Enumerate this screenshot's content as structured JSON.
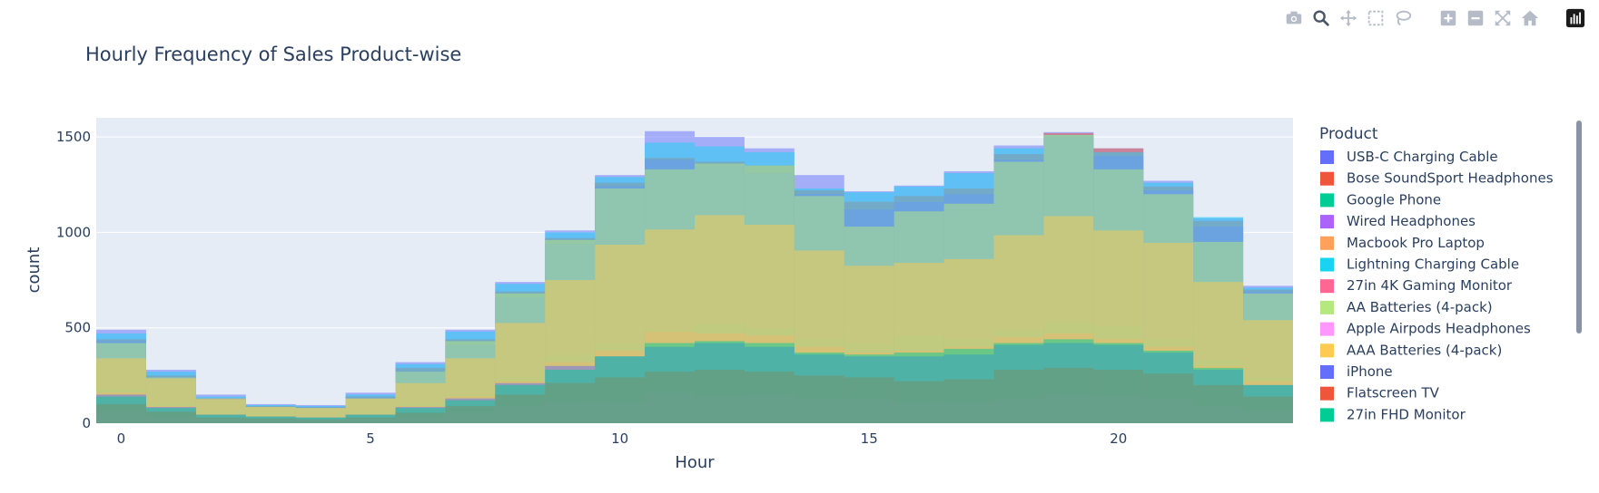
{
  "modebar": {
    "buttons": [
      {
        "name": "download-plot-icon"
      },
      {
        "name": "zoom-icon",
        "active": true
      },
      {
        "name": "pan-icon"
      },
      {
        "name": "box-select-icon"
      },
      {
        "name": "lasso-select-icon"
      },
      {
        "name": "zoom-in-icon"
      },
      {
        "name": "zoom-out-icon"
      },
      {
        "name": "autoscale-icon"
      },
      {
        "name": "reset-axes-icon"
      },
      {
        "name": "plotly-logo-icon"
      }
    ]
  },
  "chart_data": {
    "type": "bar",
    "barmode": "overlay",
    "title": "Hourly Frequency of Sales Product-wise",
    "xlabel": "Hour",
    "ylabel": "count",
    "xlim": [
      -0.5,
      23.5
    ],
    "ylim": [
      0,
      1600
    ],
    "x_ticks": [
      0,
      5,
      10,
      15,
      20
    ],
    "y_ticks": [
      0,
      500,
      1000,
      1500
    ],
    "grid": true,
    "legend_title": "Product",
    "legend_position": "right",
    "hours": [
      0,
      1,
      2,
      3,
      4,
      5,
      6,
      7,
      8,
      9,
      10,
      11,
      12,
      13,
      14,
      15,
      16,
      17,
      18,
      19,
      20,
      21,
      22,
      23
    ],
    "series": [
      {
        "name": "USB-C Charging Cable",
        "color": "#636efa",
        "values": [
          490,
          280,
          150,
          100,
          95,
          160,
          320,
          490,
          740,
          1010,
          1300,
          1530,
          1500,
          1440,
          1300,
          1215,
          1245,
          1320,
          1455,
          1525,
          1440,
          1270,
          1075,
          720
        ]
      },
      {
        "name": "Bose SoundSport Headphones",
        "color": "#EF553B",
        "values": [
          440,
          250,
          130,
          90,
          85,
          140,
          290,
          440,
          690,
          970,
          1260,
          1390,
          1370,
          1350,
          1220,
          1160,
          1190,
          1230,
          1410,
          1520,
          1440,
          1240,
          1060,
          700
        ]
      },
      {
        "name": "Google Phone",
        "color": "#00cc96",
        "values": [
          180,
          100,
          60,
          55,
          40,
          60,
          100,
          150,
          240,
          360,
          420,
          490,
          520,
          500,
          440,
          420,
          460,
          440,
          490,
          530,
          510,
          440,
          330,
          240
        ]
      },
      {
        "name": "Wired Headphones",
        "color": "#ab63fa",
        "values": [
          430,
          240,
          130,
          85,
          85,
          135,
          270,
          410,
          660,
          940,
          1240,
          1380,
          1350,
          1310,
          1200,
          1120,
          1160,
          1200,
          1380,
          1500,
          1400,
          1220,
          1030,
          690
        ]
      },
      {
        "name": "Macbook Pro Laptop",
        "color": "#FFA15A",
        "values": [
          120,
          70,
          40,
          35,
          30,
          40,
          70,
          110,
          180,
          250,
          300,
          350,
          360,
          350,
          320,
          300,
          310,
          330,
          370,
          390,
          360,
          320,
          260,
          180
        ]
      },
      {
        "name": "Lightning Charging Cable",
        "color": "#19d3f3",
        "values": [
          470,
          270,
          140,
          95,
          90,
          150,
          310,
          480,
          730,
          1000,
          1290,
          1470,
          1450,
          1420,
          1230,
          1210,
          1240,
          1310,
          1440,
          1510,
          1420,
          1260,
          1080,
          710
        ]
      },
      {
        "name": "27in 4K Gaming Monitor",
        "color": "#FF6692",
        "values": [
          160,
          90,
          50,
          40,
          35,
          50,
          90,
          140,
          220,
          320,
          380,
          480,
          470,
          460,
          400,
          370,
          380,
          400,
          450,
          470,
          440,
          400,
          300,
          220
        ]
      },
      {
        "name": "AA Batteries (4-pack)",
        "color": "#B6E880",
        "values": [
          420,
          240,
          125,
          85,
          80,
          130,
          270,
          430,
          680,
          960,
          1230,
          1330,
          1360,
          1350,
          1190,
          1030,
          1110,
          1150,
          1370,
          1510,
          1330,
          1200,
          950,
          680
        ]
      },
      {
        "name": "Apple Airpods Headphones",
        "color": "#FF97FF",
        "values": [
          60,
          35,
          20,
          15,
          15,
          20,
          35,
          55,
          90,
          110,
          110,
          160,
          140,
          150,
          130,
          130,
          110,
          110,
          130,
          150,
          140,
          130,
          90,
          60
        ]
      },
      {
        "name": "AAA Batteries (4-pack)",
        "color": "#FECB52",
        "values": [
          340,
          235,
          130,
          85,
          80,
          130,
          210,
          340,
          525,
          750,
          935,
          1015,
          1090,
          1040,
          905,
          825,
          840,
          860,
          985,
          1085,
          1010,
          945,
          740,
          540
        ]
      },
      {
        "name": "iPhone",
        "color": "#636efa",
        "values": [
          150,
          85,
          45,
          35,
          30,
          45,
          85,
          130,
          210,
          300,
          350,
          400,
          420,
          400,
          360,
          350,
          350,
          360,
          410,
          420,
          410,
          370,
          280,
          200
        ]
      },
      {
        "name": "Flatscreen TV",
        "color": "#EF553B",
        "values": [
          100,
          60,
          30,
          25,
          20,
          30,
          55,
          90,
          150,
          210,
          240,
          270,
          280,
          270,
          250,
          240,
          220,
          230,
          280,
          290,
          280,
          260,
          200,
          140
        ]
      },
      {
        "name": "27in FHD Monitor",
        "color": "#00cc96",
        "values": [
          140,
          80,
          45,
          35,
          30,
          45,
          80,
          120,
          200,
          280,
          350,
          420,
          430,
          420,
          370,
          360,
          370,
          390,
          420,
          440,
          420,
          380,
          290,
          200
        ]
      }
    ]
  }
}
